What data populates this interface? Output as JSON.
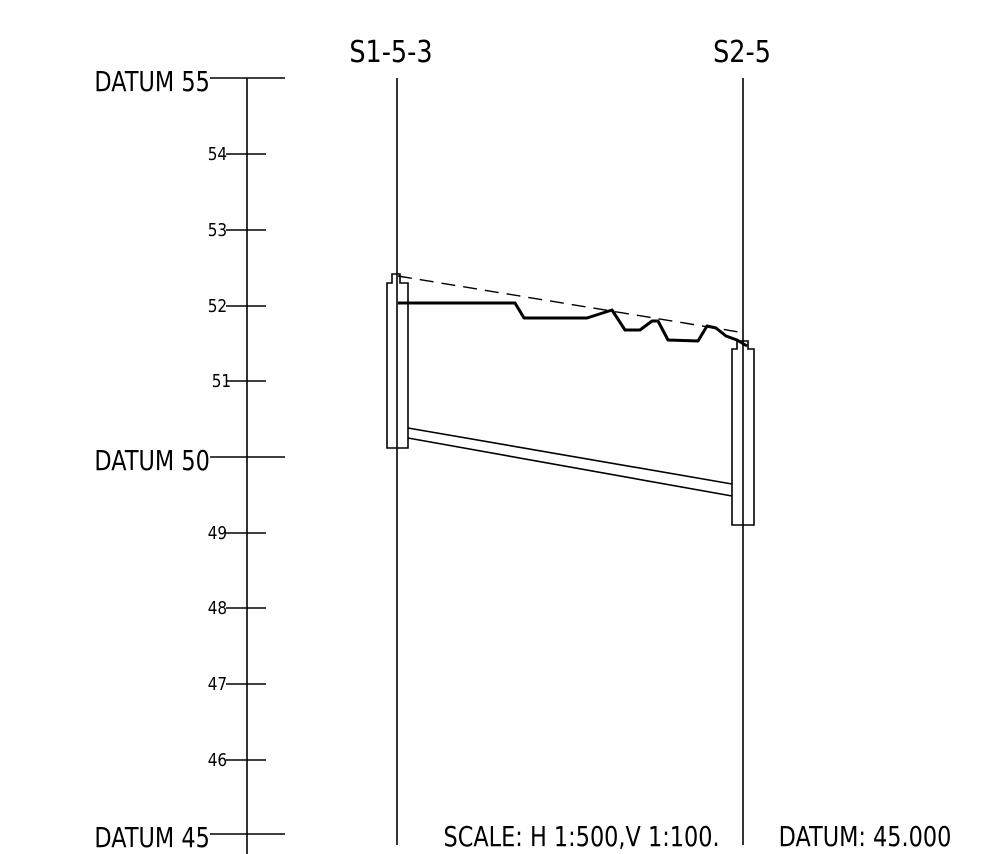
{
  "datum_labels": [
    "DATUM 55",
    "DATUM 50",
    "DATUM 45"
  ],
  "tick_labels": [
    "54",
    "53",
    "52",
    "51",
    "49",
    "48",
    "47",
    "46"
  ],
  "stations": {
    "left": "S1-5-3",
    "right": "S2-5"
  },
  "notes": {
    "scale": "SCALE: H 1:500,V 1:100.",
    "datum": "DATUM: 45.000"
  },
  "colors": {
    "line": "#000000",
    "background": "#ffffff"
  }
}
